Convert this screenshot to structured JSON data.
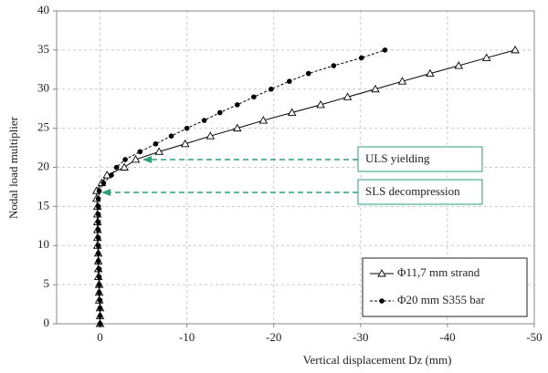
{
  "chart_data": {
    "type": "line",
    "xlabel": "Vertical displacement Dz (mm)",
    "ylabel": "Nodal load multiplier",
    "xlim": [
      5,
      -50
    ],
    "xticks": [
      0,
      -10,
      -20,
      -30,
      -40,
      -50
    ],
    "ylim": [
      0,
      40
    ],
    "yticks": [
      0,
      5,
      10,
      15,
      20,
      25,
      30,
      35,
      40
    ],
    "grid": true,
    "legend": "lower right",
    "annotations": [
      "ULS yielding",
      "SLS decompression"
    ],
    "series": [
      {
        "name": "Φ11,7 mm strand",
        "color": "#000000",
        "marker": "triangle",
        "linestyle": "solid",
        "x": [
          0,
          0,
          0,
          0.1,
          0.1,
          0.1,
          0.2,
          0.2,
          0.2,
          0.2,
          0.3,
          0.3,
          0.3,
          0.3,
          0.3,
          0.3,
          0.4,
          0.4,
          -0.2,
          -0.8,
          -2.8,
          -4.1,
          -6.8,
          -9.8,
          -12.7,
          -15.8,
          -18.8,
          -22.1,
          -25.4,
          -28.5,
          -31.7,
          -34.8,
          -38,
          -41.3,
          -44.5,
          -47.8
        ],
        "values": [
          0,
          1,
          2,
          3,
          4,
          5,
          6,
          7,
          8,
          9,
          10,
          11,
          12,
          13,
          14,
          15,
          16,
          17,
          18,
          19,
          20,
          21,
          22,
          23,
          24,
          25,
          26,
          27,
          28,
          29,
          30,
          31,
          32,
          33,
          34,
          35
        ]
      },
      {
        "name": "Φ20 mm S355 bar",
        "color": "#000000",
        "marker": "circle",
        "linestyle": "dashed",
        "x": [
          0,
          0,
          0,
          0,
          0.1,
          0.1,
          0.1,
          0.1,
          0.2,
          0.2,
          0.2,
          0.2,
          0.2,
          0.2,
          0.2,
          0.2,
          0.2,
          0.1,
          -0.4,
          -1.3,
          -1.9,
          -2.9,
          -4.6,
          -6.4,
          -8.2,
          -10,
          -12,
          -13.8,
          -15.8,
          -17.7,
          -19.7,
          -21.8,
          -24,
          -26.9,
          -30.1,
          -32.8
        ],
        "values": [
          0,
          1,
          2,
          3,
          4,
          5,
          6,
          7,
          8,
          9,
          10,
          11,
          12,
          13,
          14,
          15,
          16,
          17,
          18,
          19,
          20,
          21,
          22,
          23,
          24,
          25,
          26,
          27,
          28,
          29,
          30,
          31,
          32,
          33,
          34,
          35
        ]
      }
    ]
  }
}
